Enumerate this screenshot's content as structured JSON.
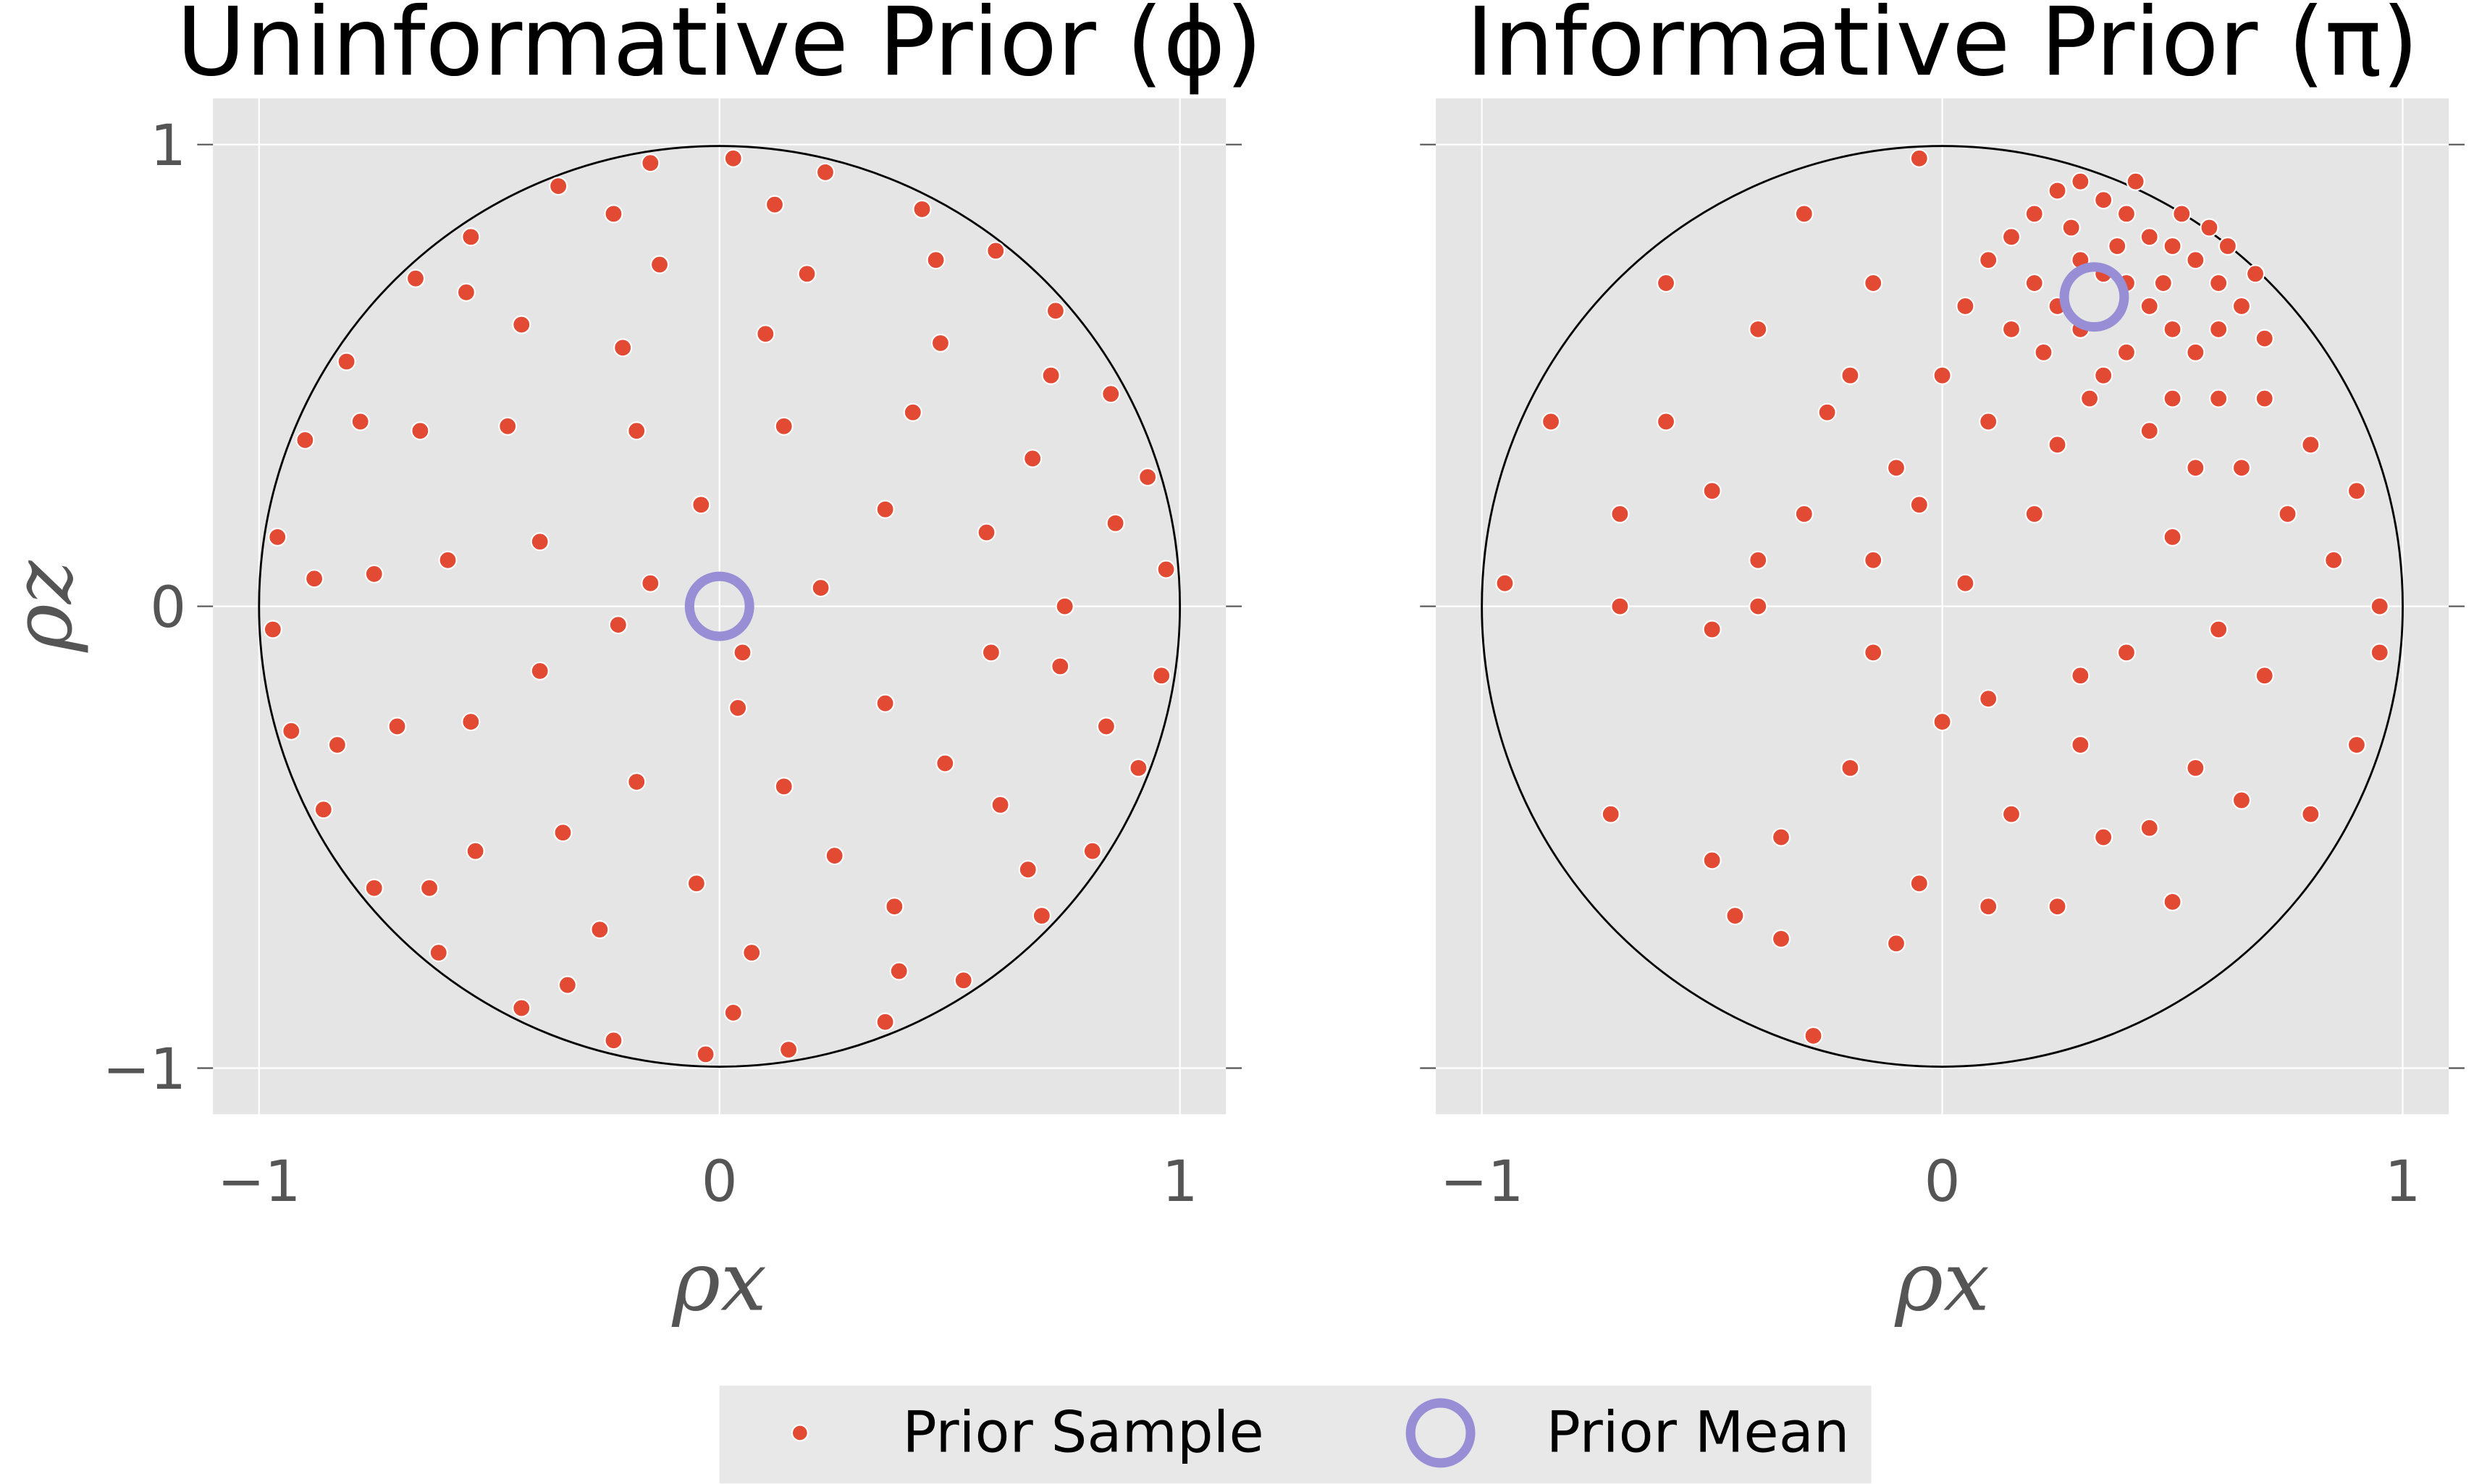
{
  "colors": {
    "sample": "#E24A33",
    "mean": "#988ED5",
    "background": "#E5E5E5",
    "grid": "#FFFFFF",
    "circle": "#000000"
  },
  "legend": {
    "placement": "bottom-center",
    "items": [
      {
        "label": "Prior Sample"
      },
      {
        "label": "Prior Mean"
      }
    ]
  },
  "chart_data": [
    {
      "type": "scatter",
      "title": "Uninformative Prior (ϕ)",
      "xlabel": "ρx",
      "ylabel": "ρz",
      "xlim": [
        -1.1,
        1.1
      ],
      "ylim": [
        -1.1,
        1.1
      ],
      "xticks": [
        "−1",
        "0",
        "1"
      ],
      "yticks": [
        "1",
        "0",
        "−1"
      ],
      "grid": true,
      "unit_circle": true,
      "prior_mean": [
        0,
        0
      ],
      "samples": [
        [
          0.97,
          0.08
        ],
        [
          0.93,
          0.28
        ],
        [
          0.85,
          0.46
        ],
        [
          0.73,
          0.64
        ],
        [
          0.6,
          0.77
        ],
        [
          0.44,
          0.86
        ],
        [
          0.23,
          0.94
        ],
        [
          0.03,
          0.97
        ],
        [
          -0.15,
          0.96
        ],
        [
          -0.35,
          0.91
        ],
        [
          -0.54,
          0.8
        ],
        [
          -0.66,
          0.71
        ],
        [
          -0.81,
          0.53
        ],
        [
          -0.9,
          0.36
        ],
        [
          -0.96,
          0.15
        ],
        [
          -0.97,
          -0.05
        ],
        [
          -0.93,
          -0.27
        ],
        [
          -0.86,
          -0.44
        ],
        [
          -0.75,
          -0.61
        ],
        [
          -0.61,
          -0.75
        ],
        [
          -0.43,
          -0.87
        ],
        [
          -0.23,
          -0.94
        ],
        [
          -0.03,
          -0.97
        ],
        [
          0.15,
          -0.96
        ],
        [
          0.36,
          -0.9
        ],
        [
          0.53,
          -0.81
        ],
        [
          0.7,
          -0.67
        ],
        [
          0.81,
          -0.53
        ],
        [
          0.91,
          -0.35
        ],
        [
          0.96,
          -0.15
        ],
        [
          0.86,
          0.18
        ],
        [
          0.72,
          0.5
        ],
        [
          0.47,
          0.75
        ],
        [
          0.12,
          0.87
        ],
        [
          -0.23,
          0.85
        ],
        [
          -0.55,
          0.68
        ],
        [
          -0.78,
          0.4
        ],
        [
          -0.88,
          0.06
        ],
        [
          -0.83,
          -0.3
        ],
        [
          -0.63,
          -0.61
        ],
        [
          -0.33,
          -0.82
        ],
        [
          0.03,
          -0.88
        ],
        [
          0.39,
          -0.79
        ],
        [
          0.67,
          -0.57
        ],
        [
          0.84,
          -0.26
        ],
        [
          0.75,
          0.0
        ],
        [
          0.68,
          0.32
        ],
        [
          0.48,
          0.57
        ],
        [
          0.19,
          0.72
        ],
        [
          -0.13,
          0.74
        ],
        [
          -0.43,
          0.61
        ],
        [
          -0.65,
          0.38
        ],
        [
          -0.75,
          0.07
        ],
        [
          -0.7,
          -0.26
        ],
        [
          -0.53,
          -0.53
        ],
        [
          -0.26,
          -0.7
        ],
        [
          0.07,
          -0.75
        ],
        [
          0.38,
          -0.65
        ],
        [
          0.61,
          -0.43
        ],
        [
          0.74,
          -0.13
        ],
        [
          0.58,
          0.16
        ],
        [
          0.42,
          0.42
        ],
        [
          0.1,
          0.59
        ],
        [
          -0.21,
          0.56
        ],
        [
          -0.46,
          0.39
        ],
        [
          -0.59,
          0.1
        ],
        [
          -0.54,
          -0.25
        ],
        [
          -0.34,
          -0.49
        ],
        [
          -0.05,
          -0.6
        ],
        [
          0.25,
          -0.54
        ],
        [
          0.49,
          -0.34
        ],
        [
          0.59,
          -0.1
        ],
        [
          0.36,
          0.21
        ],
        [
          0.14,
          0.39
        ],
        [
          -0.18,
          0.38
        ],
        [
          -0.39,
          0.14
        ],
        [
          -0.39,
          -0.14
        ],
        [
          -0.18,
          -0.38
        ],
        [
          0.14,
          -0.39
        ],
        [
          0.36,
          -0.21
        ],
        [
          0.22,
          0.04
        ],
        [
          -0.04,
          0.22
        ],
        [
          -0.22,
          -0.04
        ],
        [
          0.04,
          -0.22
        ],
        [
          -0.15,
          0.05
        ],
        [
          0.05,
          -0.1
        ]
      ]
    },
    {
      "type": "scatter",
      "title": "Informative Prior (π)",
      "xlabel": "ρx",
      "ylabel": "",
      "xlim": [
        -1.1,
        1.1
      ],
      "ylim": [
        -1.1,
        1.1
      ],
      "xticks": [
        "−1",
        "0",
        "1"
      ],
      "yticks": [],
      "grid": true,
      "unit_circle": true,
      "prior_mean": [
        0.33,
        0.67
      ],
      "samples": [
        [
          0.2,
          0.85
        ],
        [
          0.25,
          0.9
        ],
        [
          0.3,
          0.92
        ],
        [
          0.35,
          0.88
        ],
        [
          0.4,
          0.85
        ],
        [
          0.45,
          0.8
        ],
        [
          0.5,
          0.78
        ],
        [
          0.55,
          0.75
        ],
        [
          0.6,
          0.7
        ],
        [
          0.3,
          0.75
        ],
        [
          0.35,
          0.72
        ],
        [
          0.4,
          0.7
        ],
        [
          0.25,
          0.65
        ],
        [
          0.3,
          0.6
        ],
        [
          0.45,
          0.65
        ],
        [
          0.5,
          0.6
        ],
        [
          0.55,
          0.55
        ],
        [
          0.6,
          0.6
        ],
        [
          0.65,
          0.65
        ],
        [
          0.7,
          0.58
        ],
        [
          0.4,
          0.55
        ],
        [
          0.35,
          0.5
        ],
        [
          0.2,
          0.7
        ],
        [
          0.15,
          0.8
        ],
        [
          0.1,
          0.75
        ],
        [
          0.28,
          0.82
        ],
        [
          0.38,
          0.78
        ],
        [
          0.48,
          0.7
        ],
        [
          0.52,
          0.85
        ],
        [
          0.58,
          0.82
        ],
        [
          0.42,
          0.92
        ],
        [
          0.62,
          0.78
        ],
        [
          0.68,
          0.72
        ],
        [
          0.22,
          0.55
        ],
        [
          0.32,
          0.45
        ],
        [
          0.5,
          0.45
        ],
        [
          0.6,
          0.45
        ],
        [
          0.7,
          0.45
        ],
        [
          0.15,
          0.6
        ],
        [
          0.05,
          0.65
        ],
        [
          0.45,
          0.38
        ],
        [
          0.25,
          0.35
        ],
        [
          0.55,
          0.3
        ],
        [
          0.65,
          0.3
        ],
        [
          0.8,
          0.35
        ],
        [
          0.9,
          0.25
        ],
        [
          0.75,
          0.2
        ],
        [
          -0.05,
          0.97
        ],
        [
          -0.3,
          0.85
        ],
        [
          -0.6,
          0.7
        ],
        [
          -0.85,
          0.4
        ],
        [
          -0.95,
          0.05
        ],
        [
          -0.7,
          0.0
        ],
        [
          -0.72,
          -0.45
        ],
        [
          -0.5,
          -0.55
        ],
        [
          -0.45,
          -0.67
        ],
        [
          -0.35,
          -0.72
        ],
        [
          -0.28,
          -0.93
        ],
        [
          -0.1,
          -0.73
        ],
        [
          0.1,
          -0.65
        ],
        [
          0.25,
          -0.65
        ],
        [
          0.5,
          -0.64
        ],
        [
          0.55,
          -0.35
        ],
        [
          0.8,
          -0.45
        ],
        [
          0.9,
          -0.3
        ],
        [
          0.95,
          -0.1
        ],
        [
          -0.6,
          0.4
        ],
        [
          -0.4,
          0.6
        ],
        [
          -0.2,
          0.5
        ],
        [
          -0.1,
          0.3
        ],
        [
          -0.3,
          0.2
        ],
        [
          -0.5,
          0.25
        ],
        [
          -0.15,
          0.1
        ],
        [
          0.0,
          -0.25
        ],
        [
          -0.15,
          -0.1
        ],
        [
          0.1,
          -0.2
        ],
        [
          0.2,
          0.2
        ],
        [
          0.05,
          0.05
        ],
        [
          -0.5,
          -0.05
        ],
        [
          -0.2,
          -0.35
        ],
        [
          0.3,
          -0.15
        ],
        [
          0.4,
          -0.1
        ],
        [
          0.6,
          -0.05
        ],
        [
          0.7,
          -0.15
        ],
        [
          0.35,
          -0.5
        ],
        [
          0.45,
          -0.48
        ],
        [
          -0.15,
          0.7
        ],
        [
          -0.25,
          0.42
        ],
        [
          0.0,
          0.5
        ],
        [
          0.1,
          0.4
        ],
        [
          -0.05,
          0.22
        ],
        [
          -0.4,
          0.1
        ],
        [
          -0.7,
          0.2
        ],
        [
          0.15,
          -0.45
        ],
        [
          0.3,
          -0.3
        ],
        [
          -0.05,
          -0.6
        ],
        [
          -0.35,
          -0.5
        ],
        [
          0.65,
          -0.42
        ],
        [
          0.85,
          0.1
        ],
        [
          0.95,
          0.0
        ],
        [
          -0.4,
          0.0
        ],
        [
          0.5,
          0.15
        ]
      ]
    }
  ]
}
